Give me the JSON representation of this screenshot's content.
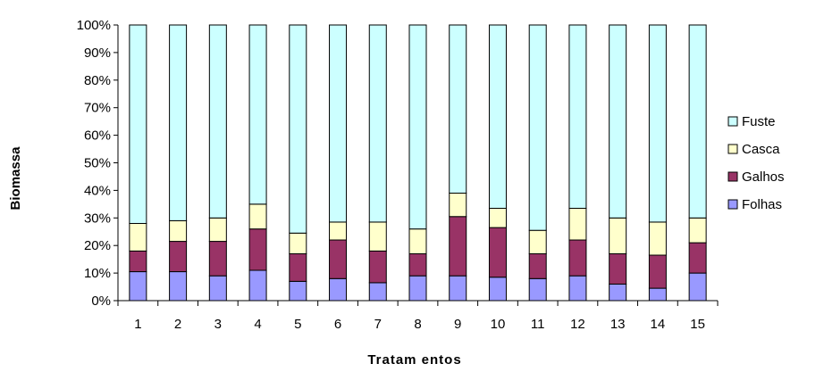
{
  "chart_data": {
    "type": "bar",
    "stacked": true,
    "percent_stacked": true,
    "xlabel": "Tratam entos",
    "ylabel": "Biomassa",
    "ylim": [
      0,
      100
    ],
    "y_ticks": [
      "0%",
      "10%",
      "20%",
      "30%",
      "40%",
      "50%",
      "60%",
      "70%",
      "80%",
      "90%",
      "100%"
    ],
    "categories": [
      "1",
      "2",
      "3",
      "4",
      "5",
      "6",
      "7",
      "8",
      "9",
      "10",
      "11",
      "12",
      "13",
      "14",
      "15"
    ],
    "legend_position": "right",
    "series": [
      {
        "name": "Folhas",
        "color": "#9999ff",
        "values": [
          10.5,
          10.5,
          9,
          11,
          7,
          8,
          6.5,
          9,
          9,
          8.5,
          8,
          9,
          6,
          4.5,
          10
        ]
      },
      {
        "name": "Galhos",
        "color": "#993366",
        "values": [
          7.5,
          11,
          12.5,
          15,
          10,
          14,
          11.5,
          8,
          21.5,
          18,
          9,
          13,
          11,
          12,
          11
        ]
      },
      {
        "name": "Casca",
        "color": "#ffffcc",
        "values": [
          10,
          7.5,
          8.5,
          9,
          7.5,
          6.5,
          10.5,
          9,
          8.5,
          7,
          8.5,
          11.5,
          13,
          12,
          9
        ]
      },
      {
        "name": "Fuste",
        "color": "#ccffff",
        "values": [
          72,
          71,
          70,
          65,
          75.5,
          71.5,
          71.5,
          74,
          61,
          66.5,
          74.5,
          66.5,
          70,
          71.5,
          70
        ]
      }
    ]
  }
}
